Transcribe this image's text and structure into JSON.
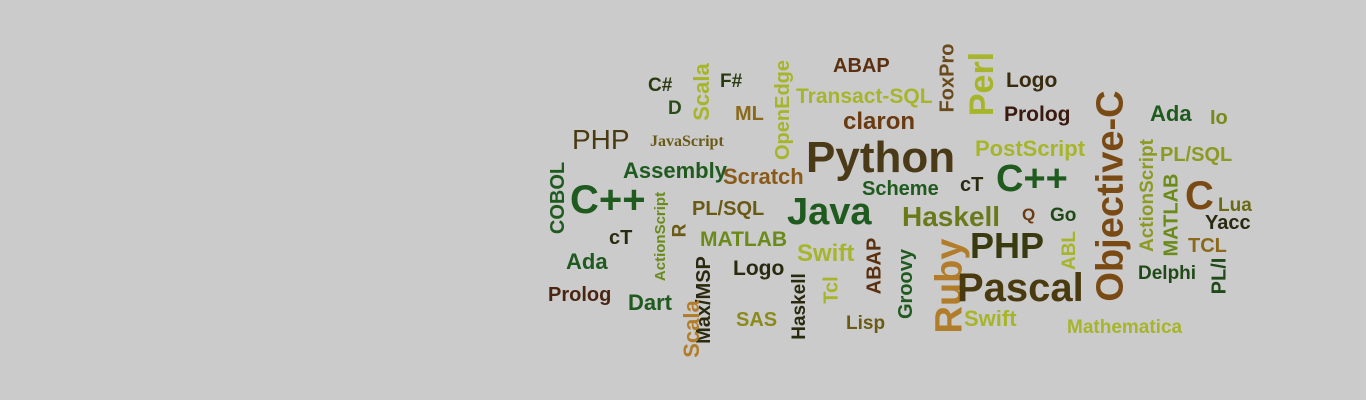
{
  "colors": {
    "background": "#cbcbcb",
    "dark_green": "#1f5a1f",
    "olive": "#8c9a22",
    "lime": "#a7b52a",
    "brown": "#6a4a1c",
    "dark_brown": "#4a2612",
    "amber": "#b27d2a"
  },
  "word_cloud": {
    "words": [
      {
        "text": "C#",
        "color": "#2a3a10"
      },
      {
        "text": "F#",
        "color": "#2a3a10"
      },
      {
        "text": "Scala",
        "color": "#a7b52a"
      },
      {
        "text": "D",
        "color": "#2a4a18"
      },
      {
        "text": "ML",
        "color": "#8a6a1a"
      },
      {
        "text": "OpenEdge",
        "color": "#a7b52a"
      },
      {
        "text": "ABAP",
        "color": "#5a3010"
      },
      {
        "text": "Transact-SQL",
        "color": "#a7b52a"
      },
      {
        "text": "FoxPro",
        "color": "#6a4a1c"
      },
      {
        "text": "Perl",
        "color": "#a7b52a"
      },
      {
        "text": "Logo",
        "color": "#3a2a10"
      },
      {
        "text": "Prolog",
        "color": "#3a1a10"
      },
      {
        "text": "claron",
        "color": "#6a3a10"
      },
      {
        "text": "PHP",
        "color": "#4a3a10"
      },
      {
        "text": "JavaScript",
        "color": "#6a5a18"
      },
      {
        "text": "Python",
        "color": "#4a3a18"
      },
      {
        "text": "PostScript",
        "color": "#a7b52a"
      },
      {
        "text": "Objective-C",
        "color": "#7a4a14"
      },
      {
        "text": "Ada",
        "color": "#1f5a1f"
      },
      {
        "text": "Io",
        "color": "#7a8a1a"
      },
      {
        "text": "ActionScript",
        "color": "#8c9a22"
      },
      {
        "text": "PL/SQL",
        "color": "#8c9a22"
      },
      {
        "text": "COBOL",
        "color": "#1f5a1f"
      },
      {
        "text": "C++",
        "color": "#1f5a1f"
      },
      {
        "text": "Assembly",
        "color": "#1f5a1f"
      },
      {
        "text": "Scratch",
        "color": "#8a5a1a"
      },
      {
        "text": "Scheme",
        "color": "#1f5a1f"
      },
      {
        "text": "cT",
        "color": "#2a2a10"
      },
      {
        "text": "C++",
        "color": "#1f5a1f"
      },
      {
        "text": "MATLAB",
        "color": "#6a8a1a"
      },
      {
        "text": "C",
        "color": "#7a4a14"
      },
      {
        "text": "Lua",
        "color": "#6a6a14"
      },
      {
        "text": "Yacc",
        "color": "#2a2a10"
      },
      {
        "text": "ActionScript",
        "color": "#6a8a1a"
      },
      {
        "text": "PL/SQL",
        "color": "#6a5a14"
      },
      {
        "text": "Java",
        "color": "#1f5a1f"
      },
      {
        "text": "Haskell",
        "color": "#6a7a1a"
      },
      {
        "text": "Q",
        "color": "#6a3a10"
      },
      {
        "text": "Go",
        "color": "#1f4a18"
      },
      {
        "text": "cT",
        "color": "#2a2a10"
      },
      {
        "text": "R",
        "color": "#6a5a14"
      },
      {
        "text": "MATLAB",
        "color": "#6a8a1a"
      },
      {
        "text": "Swift",
        "color": "#a7b52a"
      },
      {
        "text": "ABAP",
        "color": "#5a3010"
      },
      {
        "text": "PHP",
        "color": "#3a3a10"
      },
      {
        "text": "ABL",
        "color": "#a7b52a"
      },
      {
        "text": "TCL",
        "color": "#8a6a1a"
      },
      {
        "text": "Ada",
        "color": "#1f5a1f"
      },
      {
        "text": "Logo",
        "color": "#2a2a10"
      },
      {
        "text": "Groovy",
        "color": "#1f5a1f"
      },
      {
        "text": "Ruby",
        "color": "#b27d2a"
      },
      {
        "text": "Pascal",
        "color": "#4a3a10"
      },
      {
        "text": "Delphi",
        "color": "#1f4a18"
      },
      {
        "text": "PL/I",
        "color": "#1f4a18"
      },
      {
        "text": "Prolog",
        "color": "#4a2612"
      },
      {
        "text": "Dart",
        "color": "#1f5a1f"
      },
      {
        "text": "Max/MSP",
        "color": "#2a2a10"
      },
      {
        "text": "Tcl",
        "color": "#a7b52a"
      },
      {
        "text": "Haskell",
        "color": "#2a2a10"
      },
      {
        "text": "SAS",
        "color": "#8c8a1a"
      },
      {
        "text": "Scala",
        "color": "#b27d2a"
      },
      {
        "text": "Lisp",
        "color": "#6a5a14"
      },
      {
        "text": "Swift",
        "color": "#a7b52a"
      },
      {
        "text": "Mathematica",
        "color": "#a7b52a"
      }
    ]
  }
}
